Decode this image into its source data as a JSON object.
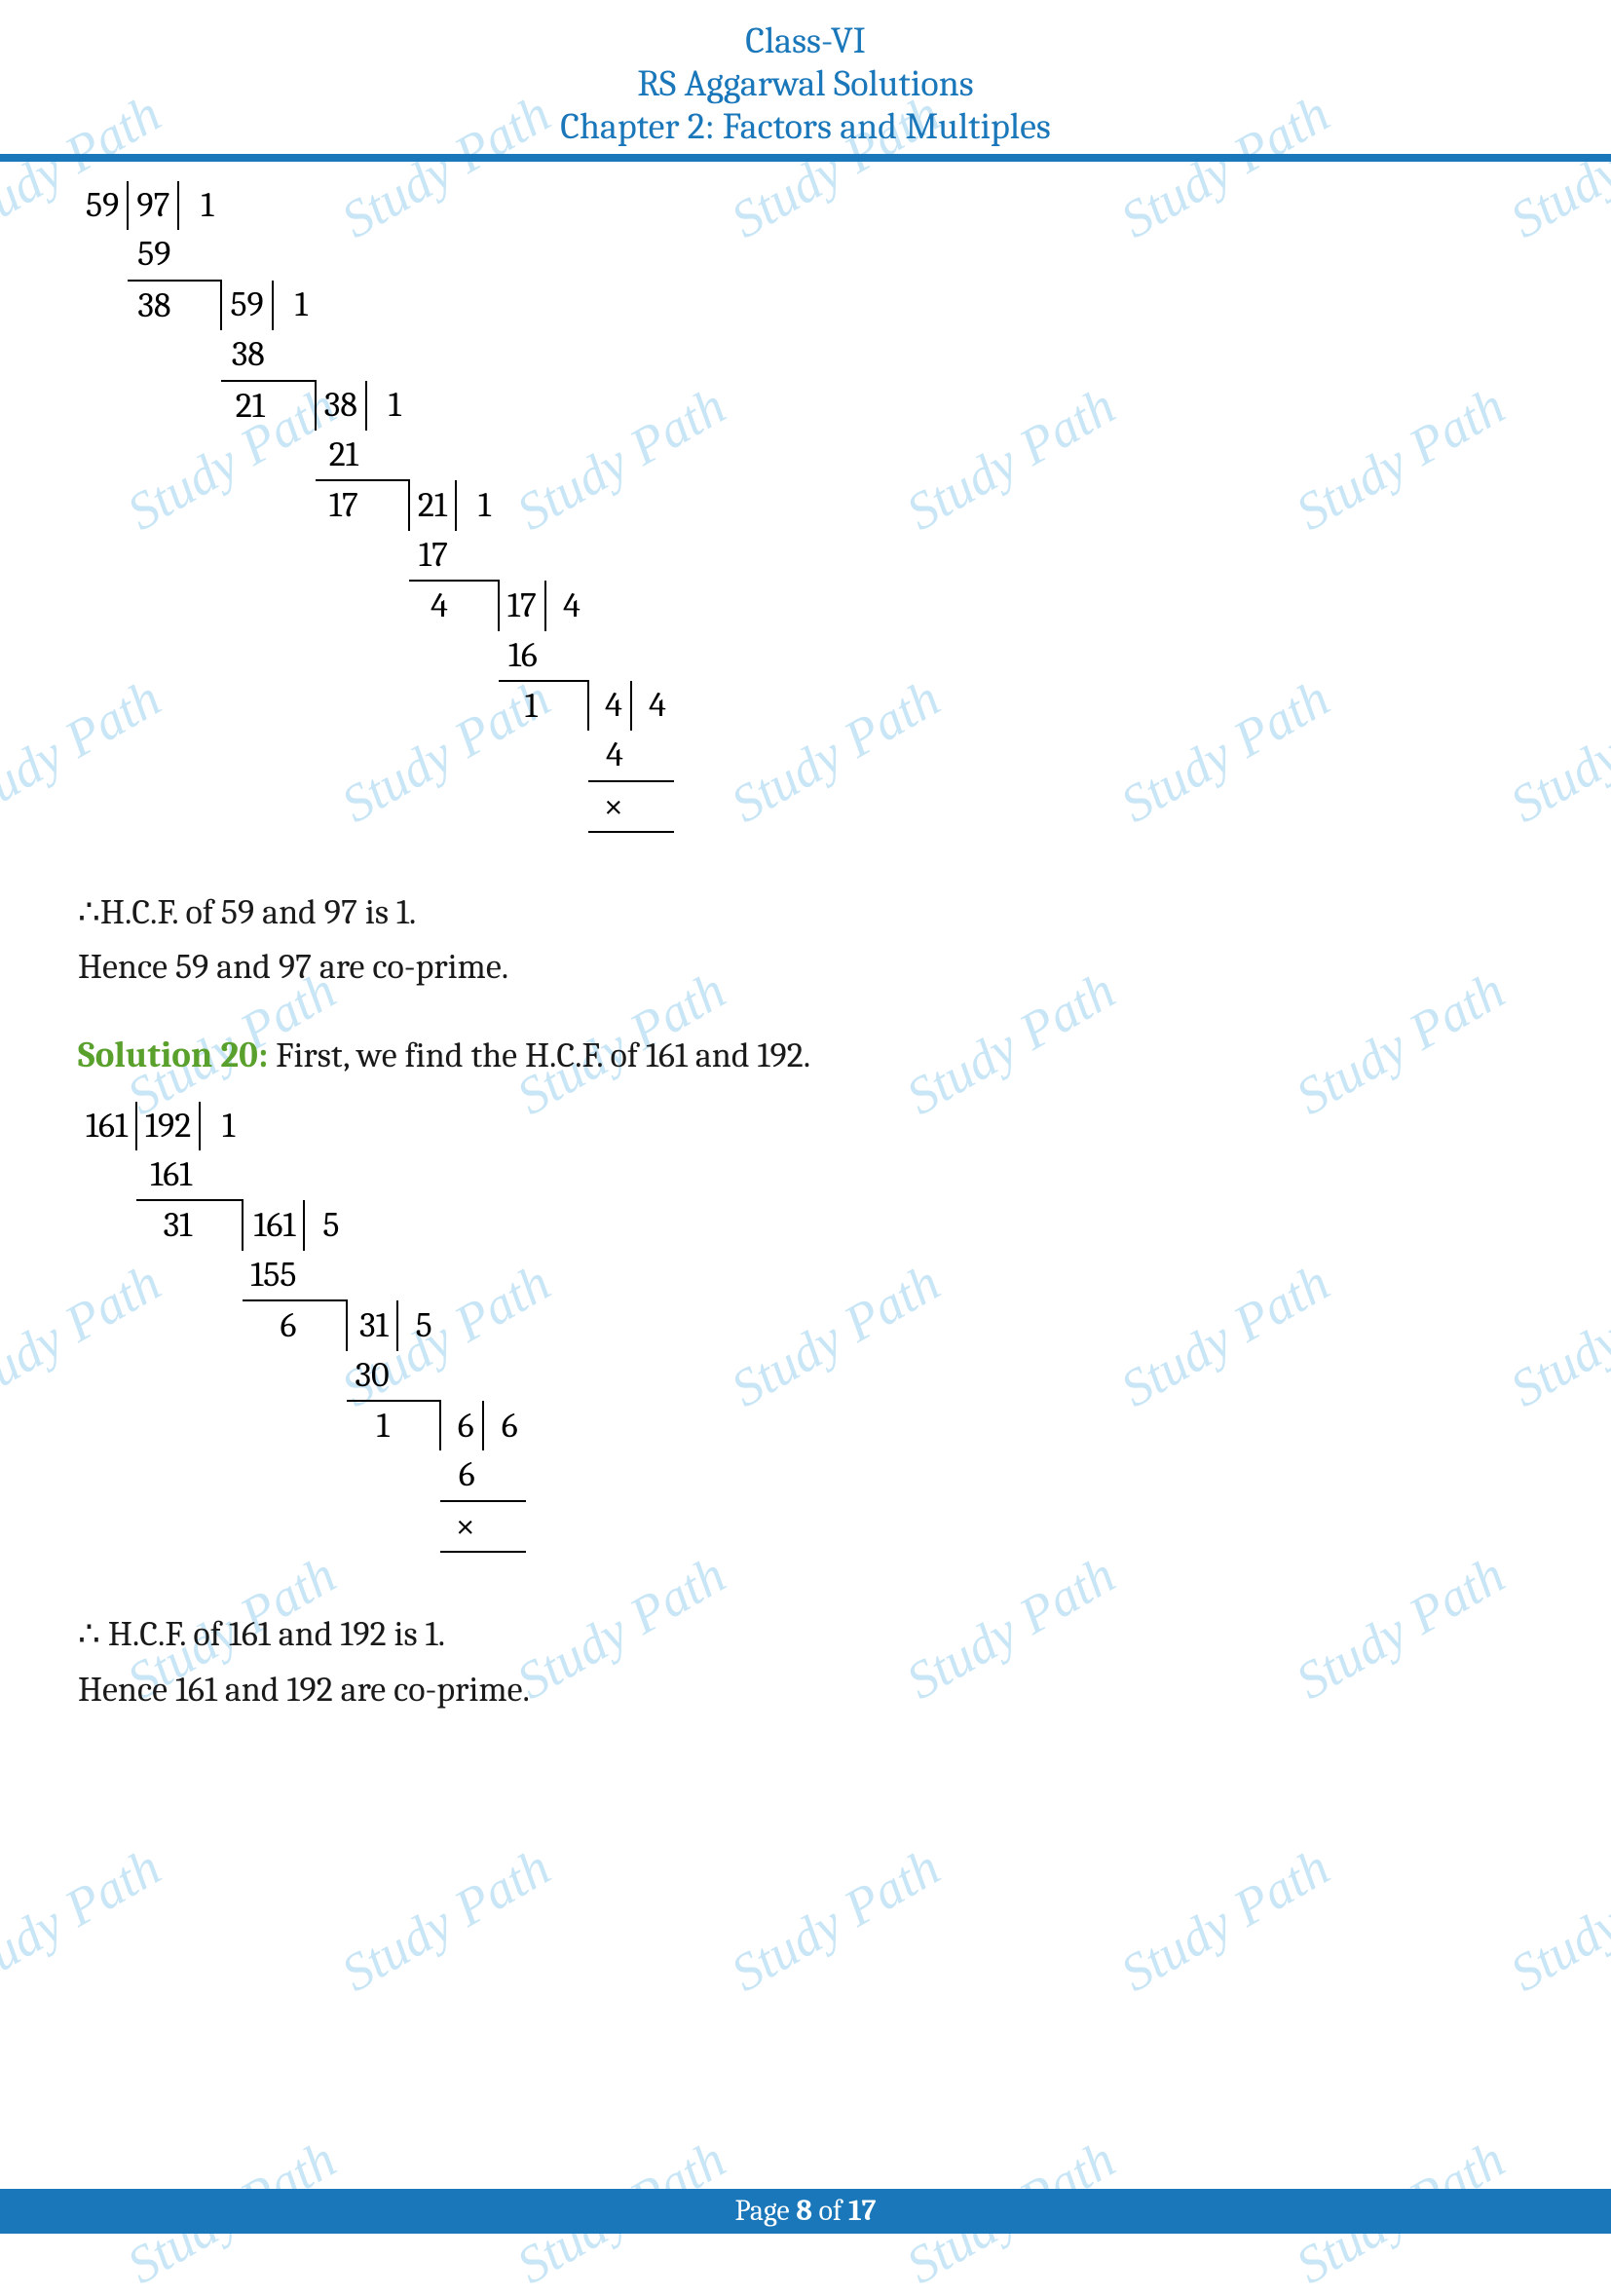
{
  "header": {
    "line1": "Class-VI",
    "line2": "RS Aggarwal Solutions",
    "line3": "Chapter 2: Factors and Multiples",
    "color": "#ffffff",
    "bg": "#1a77ba"
  },
  "watermark": {
    "text": "Study Path",
    "color": "#c9e6f6",
    "fontsize": 54
  },
  "div1": {
    "steps": [
      {
        "divisor": "59",
        "dividend": "97",
        "quot": "1",
        "sub": "59",
        "rem": "38"
      },
      {
        "divisor": "38",
        "dividend": "59",
        "quot": "1",
        "sub": "38",
        "rem": "21"
      },
      {
        "divisor": "21",
        "dividend": "38",
        "quot": "1",
        "sub": "21",
        "rem": "17"
      },
      {
        "divisor": "17",
        "dividend": "21",
        "quot": "1",
        "sub": "17",
        "rem": "4"
      },
      {
        "divisor": "4",
        "dividend": "17",
        "quot": "4",
        "sub": "16",
        "rem": "1"
      },
      {
        "divisor": "1",
        "dividend": "4",
        "quot": "4",
        "sub": "4",
        "rem": "×"
      }
    ]
  },
  "text1": "∴H.C.F. of 59 and 97 is 1.",
  "text2": "Hence 59 and 97 are co-prime.",
  "solution_label": "Solution 20:",
  "solution_label_color": "#5aa02c",
  "solution_text": " First, we find the H.C.F. of 161 and 192.",
  "div2": {
    "steps": [
      {
        "divisor": "161",
        "dividend": "192",
        "quot": "1",
        "sub": "161",
        "rem": "31"
      },
      {
        "divisor": "31",
        "dividend": "161",
        "quot": "5",
        "sub": "155",
        "rem": "6"
      },
      {
        "divisor": "6",
        "dividend": "31",
        "quot": "5",
        "sub": "30",
        "rem": "1"
      },
      {
        "divisor": "1",
        "dividend": "6",
        "quot": "6",
        "sub": "6",
        "rem": "×"
      }
    ]
  },
  "text3": "∴ H.C.F. of 161 and 192 is 1.",
  "text4": "Hence 161 and 192 are co-prime.",
  "footer": {
    "prefix": "Page ",
    "current": "8",
    "middle": " of ",
    "total": "17",
    "bg": "#1a77ba",
    "color": "#ffffff"
  }
}
